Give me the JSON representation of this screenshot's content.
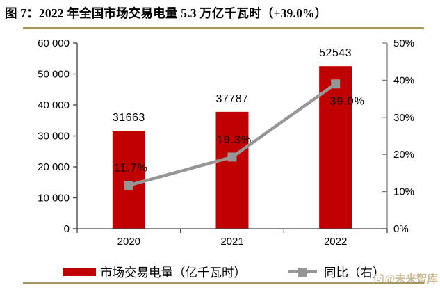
{
  "title": "图 7：2022 年全国市场交易电量 5.3 万亿千瓦时（+39.0%）",
  "colors": {
    "bar": "#C00000",
    "line": "#969696",
    "gold_rule": "#A6955C",
    "axis_dark": "#404040",
    "axis_gray": "#808080",
    "text": "#000000",
    "watermark": "#C9BC96"
  },
  "chart_data": {
    "type": "bar",
    "subtype": "bar-line-dual-axis",
    "title": "2022 年全国市场交易电量 5.3 万亿千瓦时（+39.0%）",
    "categories": [
      "2020",
      "2021",
      "2022"
    ],
    "series": [
      {
        "name": "市场交易电量（亿千瓦时）",
        "type": "bar",
        "axis": "left",
        "values": [
          31663,
          37787,
          52543
        ],
        "data_labels": [
          "31663",
          "37787",
          "52543"
        ],
        "color": "#C00000"
      },
      {
        "name": "同比（右）",
        "type": "line",
        "axis": "right",
        "values": [
          11.7,
          19.3,
          39.0
        ],
        "data_labels": [
          "11.7%",
          "19.3%",
          "39.0%"
        ],
        "label_placement": [
          "above",
          "above",
          "below-right"
        ],
        "color": "#969696"
      }
    ],
    "left_axis": {
      "min": 0,
      "max": 60000,
      "tick_step": 10000,
      "tick_labels": [
        "0",
        "10 000",
        "20 000",
        "30 000",
        "40 000",
        "50 000",
        "60 000"
      ]
    },
    "right_axis": {
      "min": 0,
      "max": 50,
      "tick_step": 10,
      "tick_labels": [
        "0%",
        "10%",
        "20%",
        "30%",
        "40%",
        "50%"
      ]
    },
    "grid": "off",
    "legend_position": "bottom"
  },
  "legend": {
    "items": [
      {
        "label": "市场交易电量（亿千瓦时）",
        "swatch": "bar"
      },
      {
        "label": "同比（右）",
        "swatch": "line-marker"
      }
    ]
  },
  "watermark": {
    "text": "@未来智库",
    "icon": "future-think-tank-logo"
  }
}
